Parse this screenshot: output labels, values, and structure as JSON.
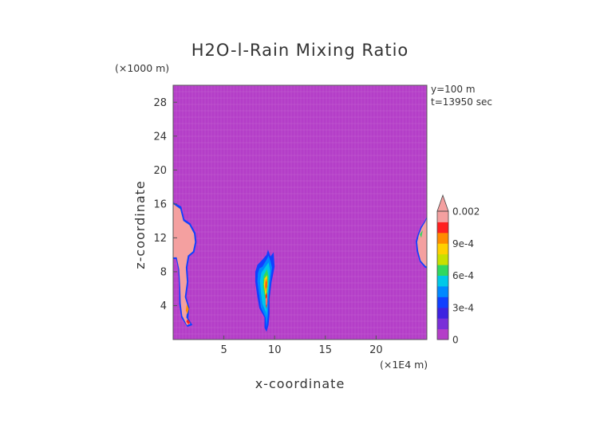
{
  "chart_data": {
    "type": "heatmap",
    "title": "H2O-l-Rain Mixing Ratio",
    "xlabel": "x-coordinate",
    "ylabel": "z-coordinate",
    "x_unit": "(×1E4 m)",
    "y_unit": "(×1000 m)",
    "info_lines": [
      "y=100 m",
      "t=13950 sec"
    ],
    "xlim": [
      0,
      25
    ],
    "ylim": [
      0,
      30
    ],
    "xticks": [
      5,
      10,
      15,
      20
    ],
    "yticks": [
      4,
      8,
      12,
      16,
      20,
      24,
      28
    ],
    "colorbar": {
      "tick_labels": [
        "0",
        "3e-4",
        "6e-4",
        "9e-4",
        "0.002"
      ],
      "levels": [
        0,
        0.0001,
        0.0002,
        0.0003,
        0.0004,
        0.0005,
        0.0006,
        0.0007,
        0.0008,
        0.0009,
        0.001,
        0.0015,
        0.002
      ],
      "colors": [
        "#b43ec8",
        "#7a2fd8",
        "#3e22e0",
        "#1040ff",
        "#0088ff",
        "#00c8e8",
        "#30d860",
        "#c8e000",
        "#ffd000",
        "#ff8c00",
        "#ff2020",
        "#f4a0a0"
      ],
      "ticks_at": [
        0,
        0.0003,
        0.0006,
        0.0009,
        0.002
      ],
      "extend": "max"
    },
    "background_value": 0,
    "features": [
      {
        "name": "left-edge cloud",
        "value": 0.002,
        "x_range": [
          0,
          2.3
        ],
        "z_range": [
          1.5,
          16.2
        ]
      },
      {
        "name": "central cloud",
        "value": 0.0008,
        "x_range": [
          8.1,
          10.0
        ],
        "z_range": [
          0.8,
          10.5
        ]
      },
      {
        "name": "right-edge cloud",
        "value": 0.002,
        "x_range": [
          24.0,
          25.0
        ],
        "z_range": [
          8.4,
          14.4
        ]
      }
    ]
  },
  "colors": {
    "background": "#b43ec8",
    "grid": "#c56ad1",
    "text": "#333333"
  }
}
